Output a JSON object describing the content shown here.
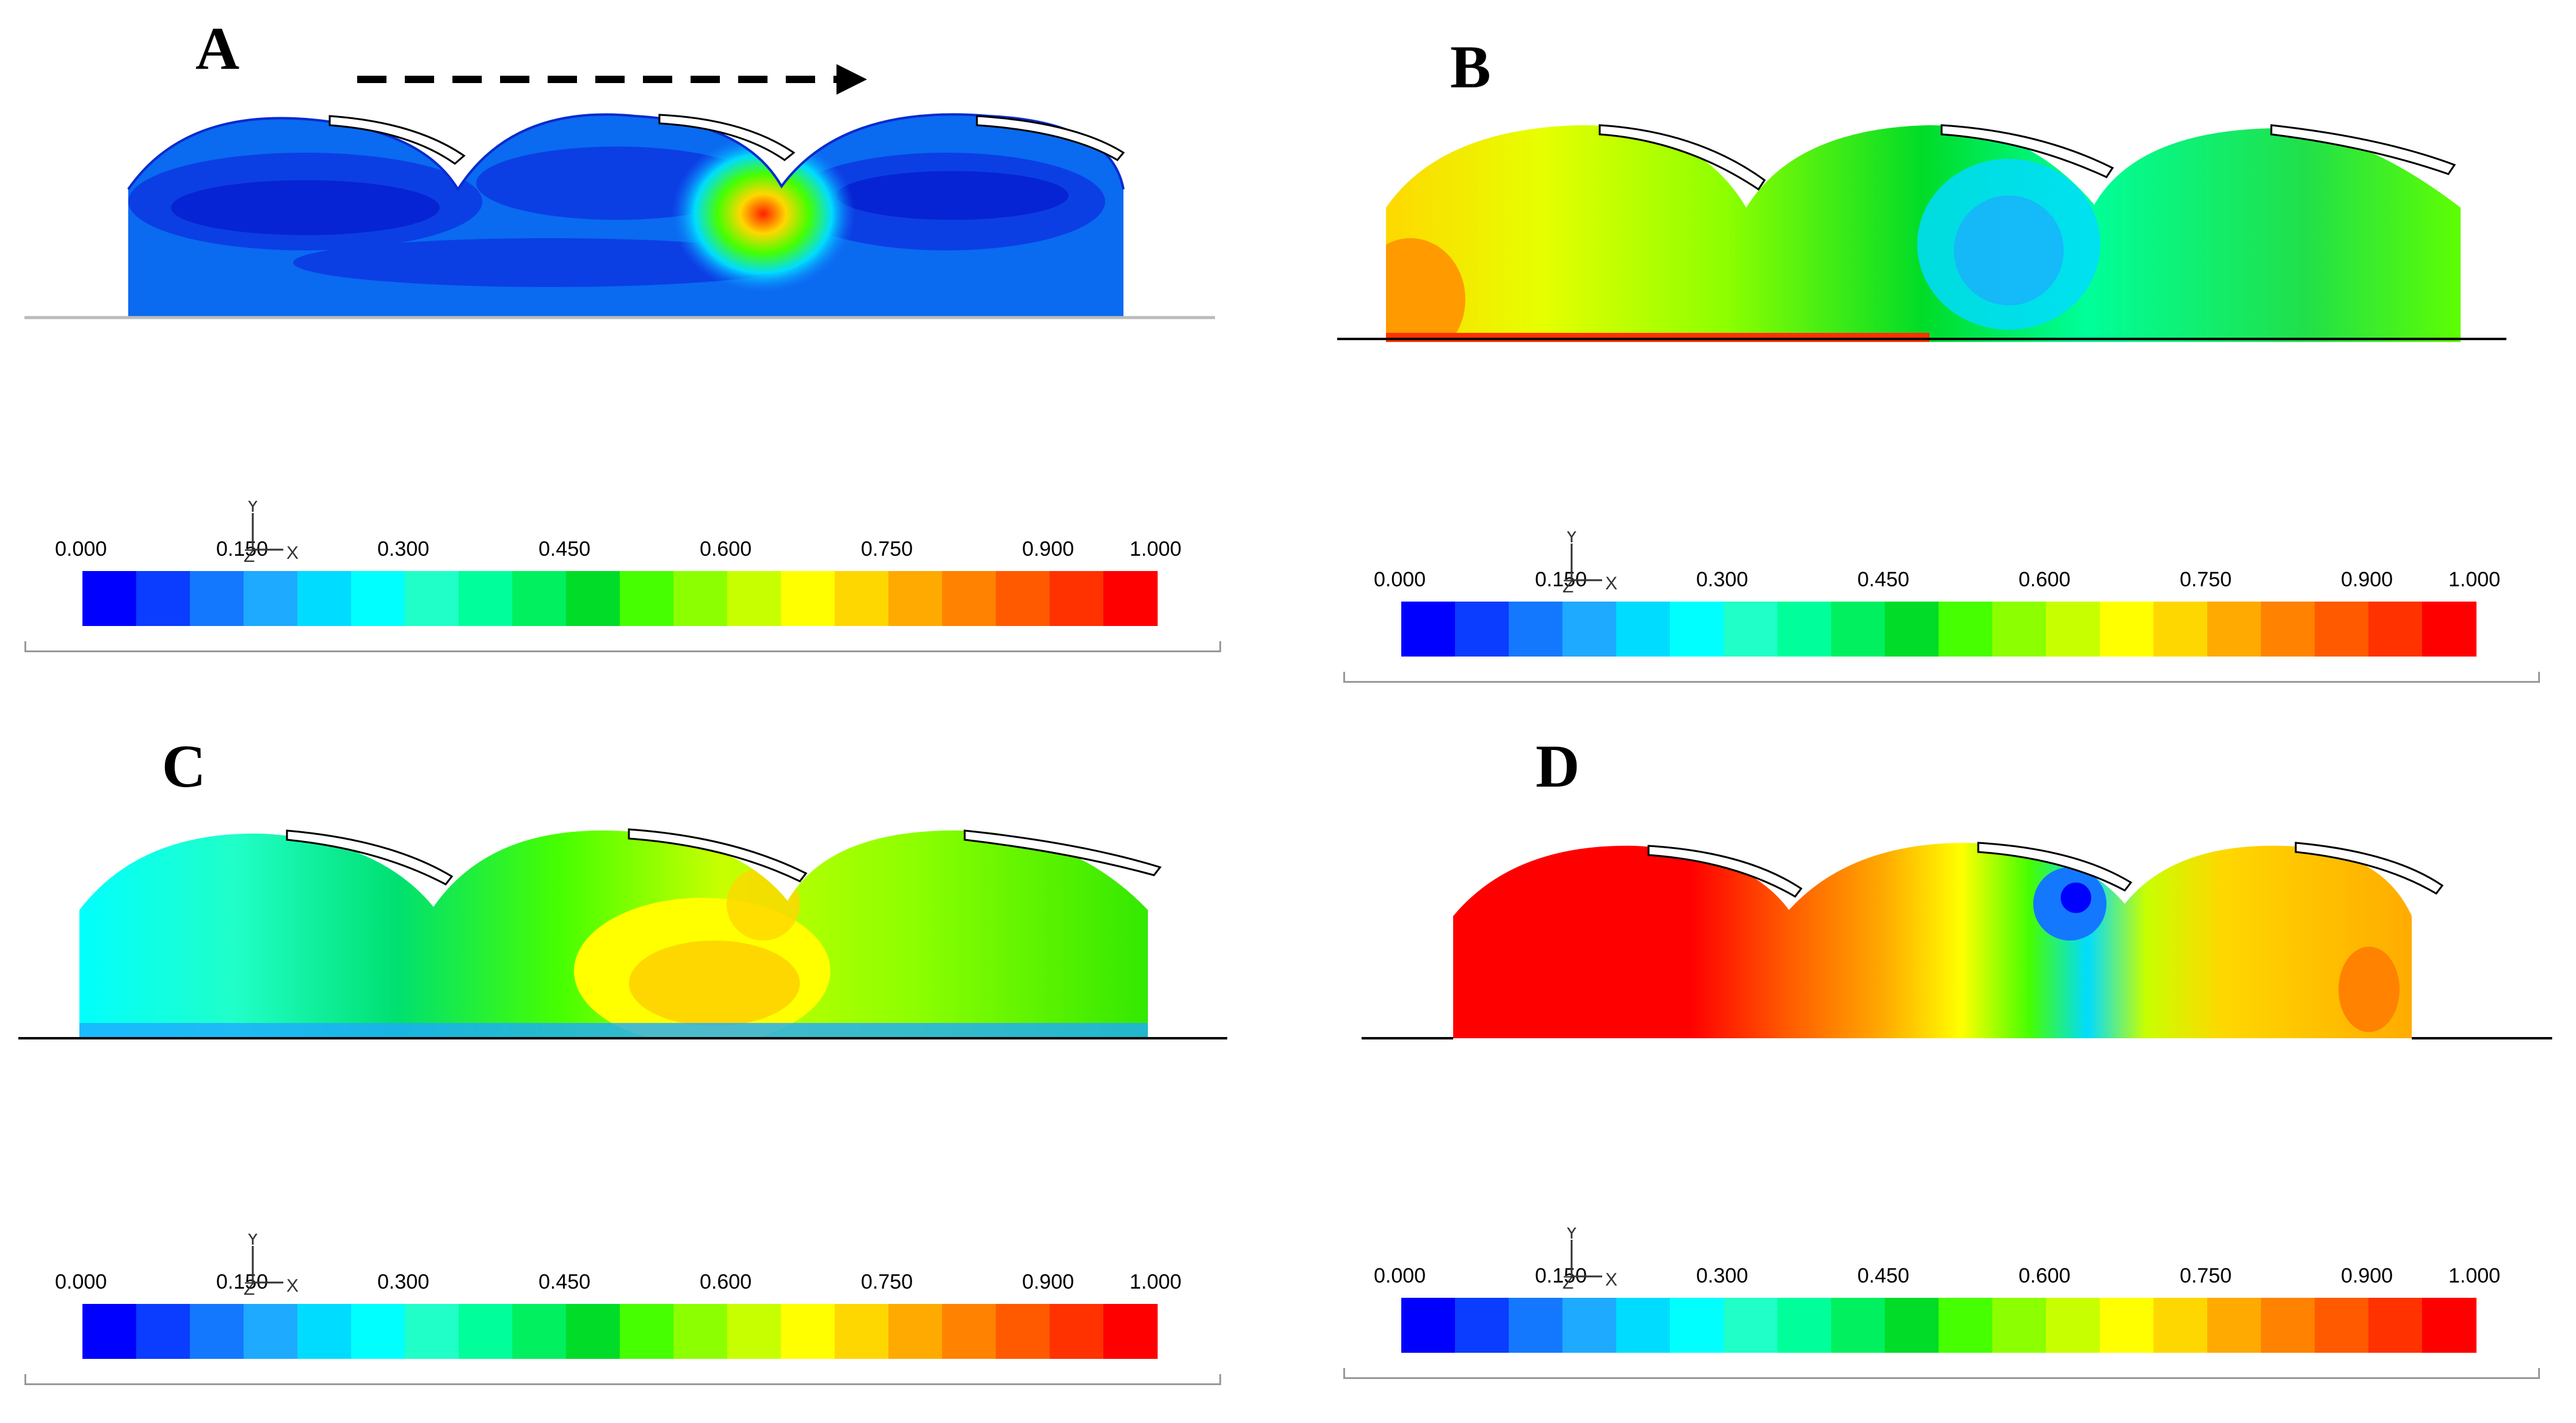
{
  "panels": [
    {
      "id": "a",
      "label": "A"
    },
    {
      "id": "b",
      "label": "B"
    },
    {
      "id": "c",
      "label": "C"
    },
    {
      "id": "d",
      "label": "D"
    }
  ],
  "legend": {
    "tick_labels": [
      "0.000",
      "0.150",
      "0.300",
      "0.450",
      "0.600",
      "0.750",
      "0.900",
      "1.000"
    ],
    "tick_values": [
      0.0,
      0.15,
      0.3,
      0.45,
      0.6,
      0.75,
      0.9,
      1.0
    ],
    "colors": [
      "#0000ff",
      "#0a3dff",
      "#1478ff",
      "#1eaaff",
      "#00dcff",
      "#00ffff",
      "#20ffc8",
      "#00ff9a",
      "#00f060",
      "#00dc28",
      "#46ff00",
      "#8cff00",
      "#c8ff00",
      "#ffff00",
      "#ffd700",
      "#ffaa00",
      "#ff8200",
      "#ff5a00",
      "#ff3200",
      "#ff0000"
    ],
    "axis": {
      "y": "Y",
      "z": "Z",
      "x": "X"
    }
  },
  "colors": {
    "deep_blue": "#0a46e6",
    "dark_blue": "#0828d8",
    "outline": "#222222",
    "ground": "#bbbbbb"
  },
  "flow_direction": "left-to-right"
}
